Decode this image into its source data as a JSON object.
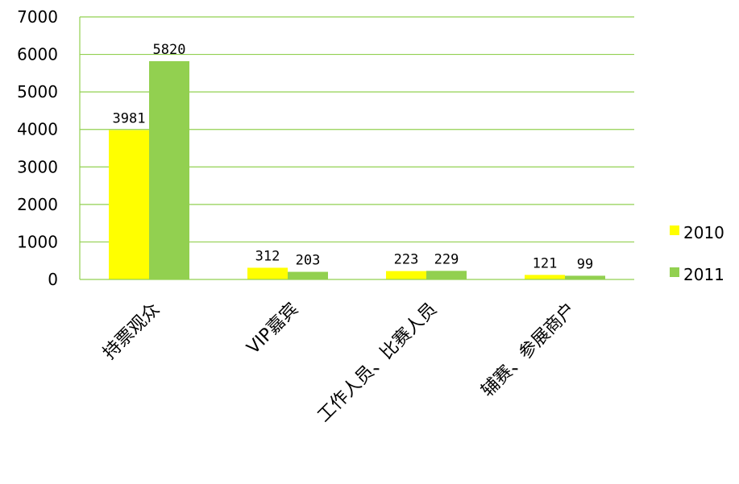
{
  "chart_data": {
    "type": "bar",
    "categories": [
      "持票观众",
      "VIP嘉宾",
      "工作人员、比赛人员",
      "辅赛、参展商户"
    ],
    "series": [
      {
        "name": "2010",
        "values": [
          3981,
          312,
          223,
          121
        ],
        "color": "#FFFF00"
      },
      {
        "name": "2011",
        "values": [
          5820,
          203,
          229,
          99
        ],
        "color": "#92D050"
      }
    ],
    "ylim": [
      0,
      7000
    ],
    "yticks": [
      0,
      1000,
      2000,
      3000,
      4000,
      5000,
      6000,
      7000
    ],
    "grid": true,
    "grid_color": "#92D050",
    "legend_position": "right",
    "data_labels": true
  }
}
